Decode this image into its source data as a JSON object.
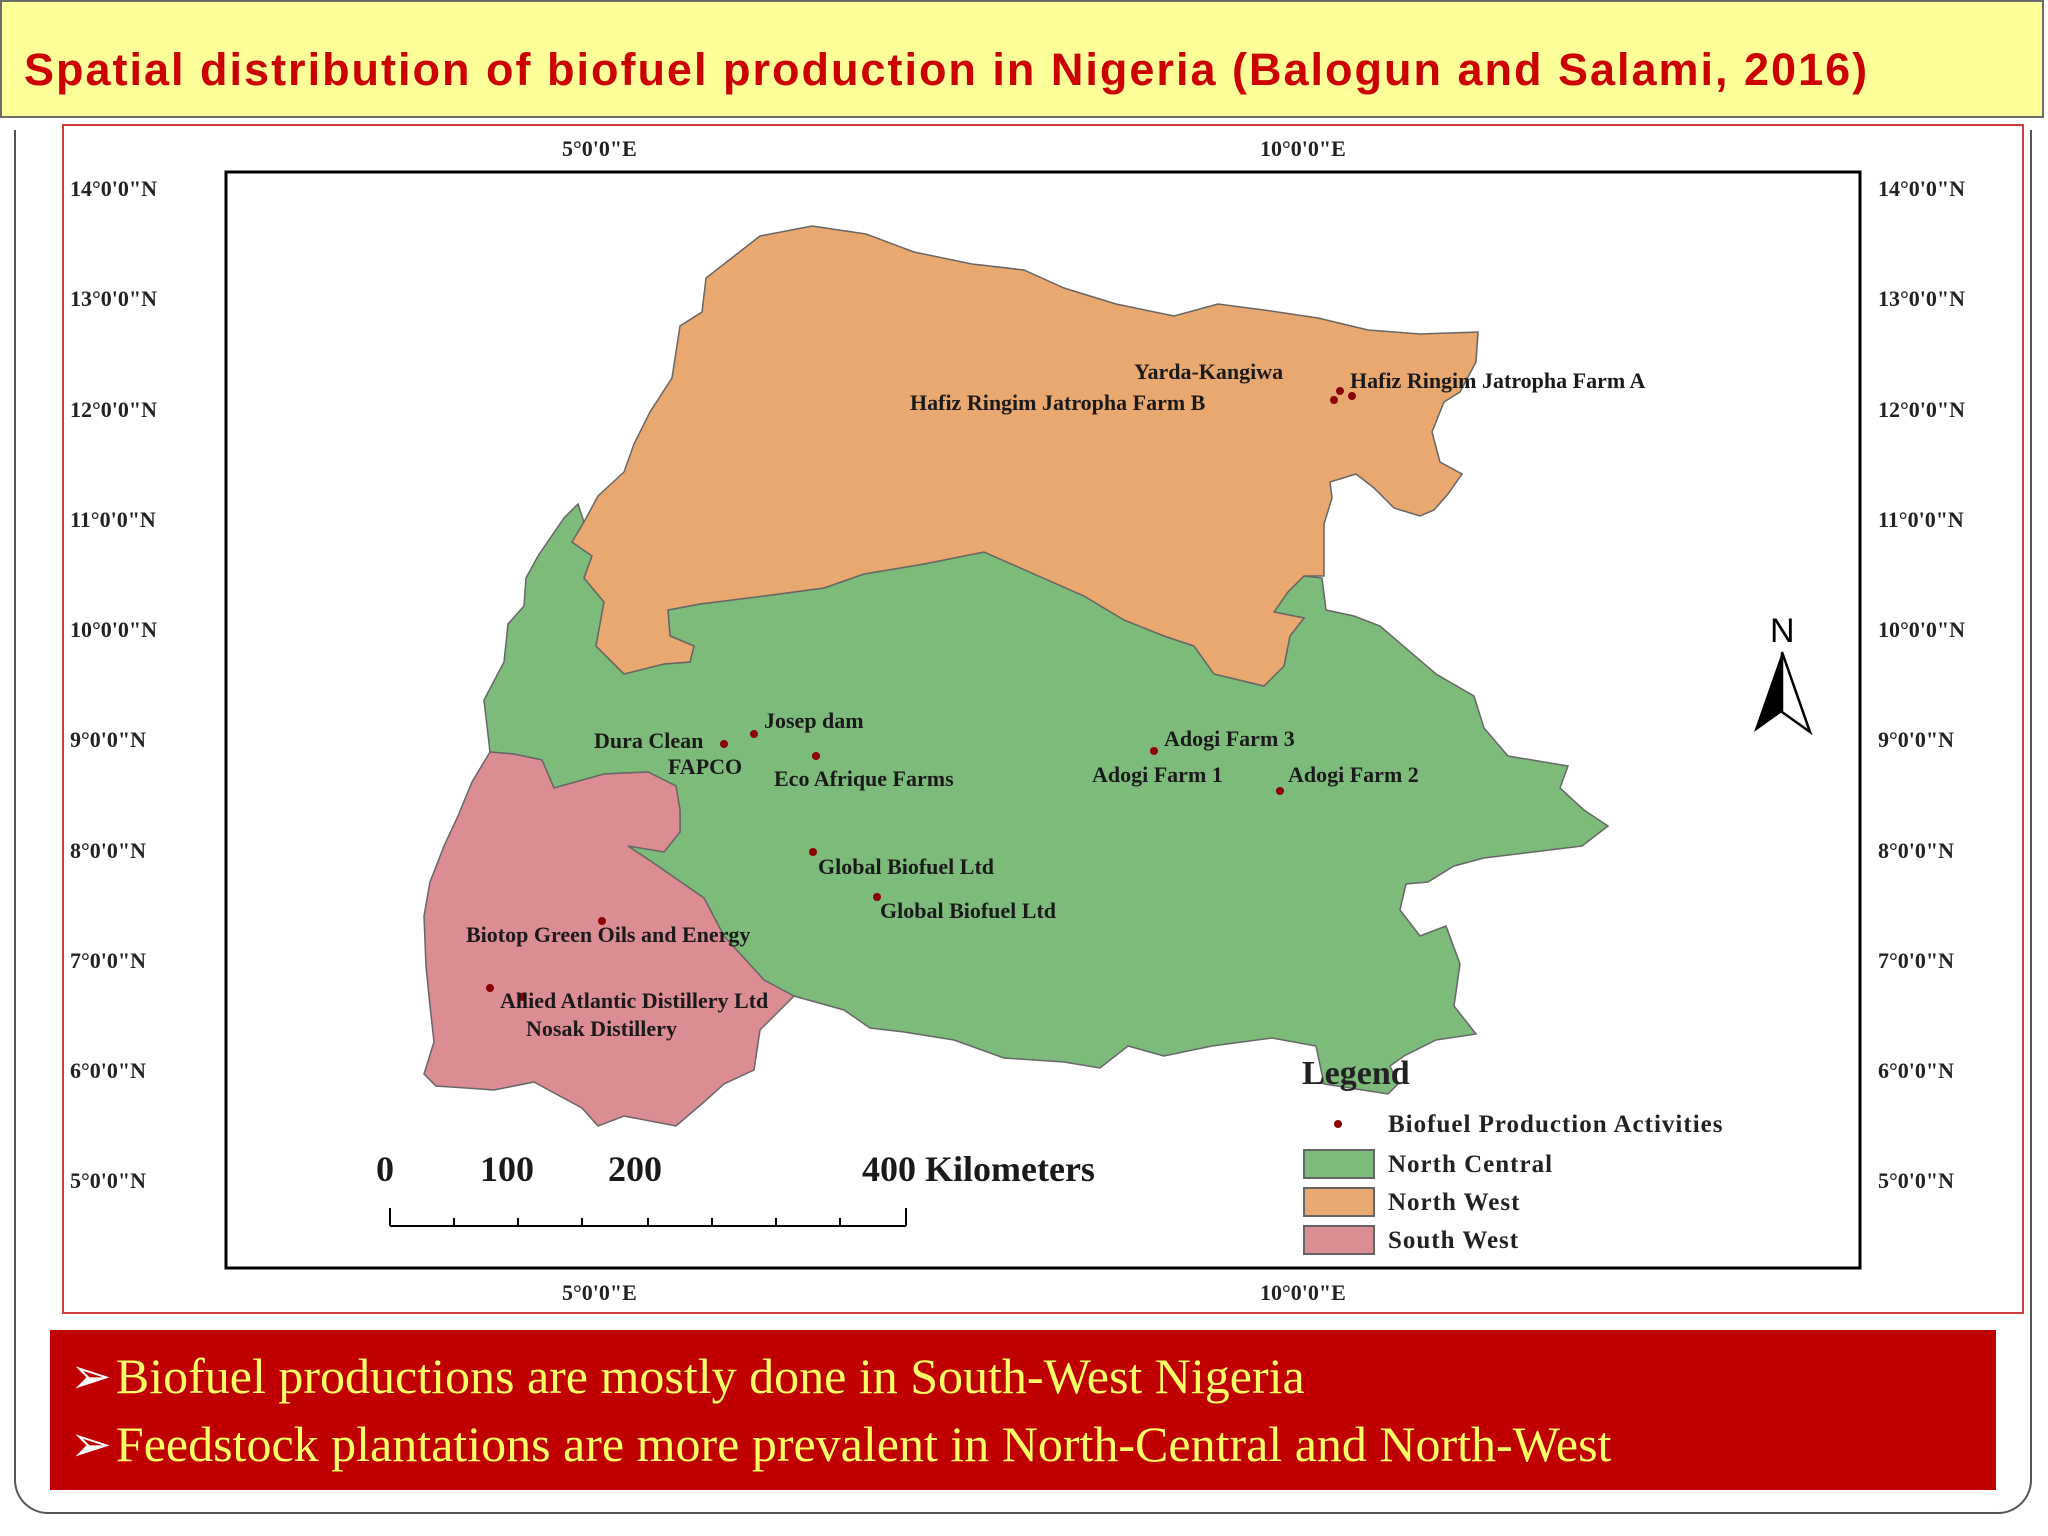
{
  "title": "Spatial distribution of biofuel production in Nigeria (Balogun and Salami, 2016)",
  "map": {
    "top_longitudes": [
      "5°0'0\"E",
      "10°0'0\"E"
    ],
    "bottom_longitudes": [
      "5°0'0\"E",
      "10°0'0\"E"
    ],
    "left_latitudes": [
      "14°0'0\"N",
      "13°0'0\"N",
      "12°0'0\"N",
      "11°0'0\"N",
      "10°0'0\"N",
      "9°0'0\"N",
      "8°0'0\"N",
      "7°0'0\"N",
      "6°0'0\"N",
      "5°0'0\"N"
    ],
    "right_latitudes": [
      "14°0'0\"N",
      "13°0'0\"N",
      "12°0'0\"N",
      "11°0'0\"N",
      "10°0'0\"N",
      "9°0'0\"N",
      "8°0'0\"N",
      "7°0'0\"N",
      "6°0'0\"N",
      "5°0'0\"N"
    ],
    "north_arrow_label": "N",
    "sites": [
      "Yarda-Kangiwa",
      "Hafiz Ringim Jatropha Farm A",
      "Hafiz Ringim Jatropha Farm B",
      "Josep dam",
      "Dura Clean",
      "FAPCO",
      "Eco Afrique Farms",
      "Adogi Farm 3",
      "Adogi Farm 1",
      "Adogi Farm 2",
      "Global Biofuel Ltd",
      "Global Biofuel Ltd",
      "Biotop Green Oils and Energy",
      "Allied Atlantic Distillery Ltd",
      "Nosak Distillery"
    ],
    "scale_bar": {
      "ticks": [
        "0",
        "100",
        "200",
        "400 Kilometers"
      ]
    },
    "legend": {
      "title": "Legend",
      "items": [
        {
          "label": "Biofuel Production Activities",
          "color": "#8b0000",
          "kind": "point"
        },
        {
          "label": "North Central",
          "color": "#7dbb7b",
          "kind": "area"
        },
        {
          "label": "North West",
          "color": "#e9a86f",
          "kind": "area"
        },
        {
          "label": "South West",
          "color": "#dc8c93",
          "kind": "area"
        }
      ]
    }
  },
  "bullets": [
    "Biofuel productions are mostly done in South-West Nigeria",
    "Feedstock plantations are more prevalent in North-Central and North-West"
  ],
  "colors": {
    "title_bg": "#ffff99",
    "title_text": "#cc0000",
    "bullet_bg": "#c00000",
    "bullet_text": "#ffff66"
  }
}
